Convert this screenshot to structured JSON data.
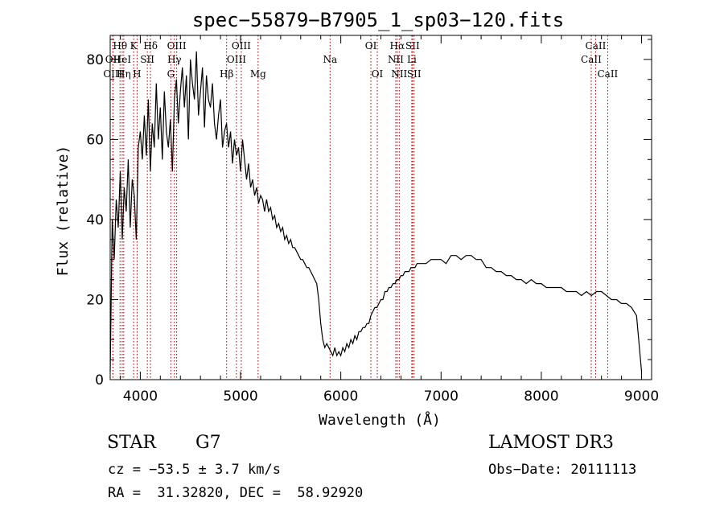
{
  "chart_data": {
    "type": "line",
    "title": "spec−55879−B7905_1_sp03−120.fits",
    "xlabel": "Wavelength (Å)",
    "ylabel": "Flux (relative)",
    "xlim": [
      3700,
      9100
    ],
    "ylim": [
      0,
      86
    ],
    "xticks": [
      4000,
      5000,
      6000,
      7000,
      8000,
      9000
    ],
    "yticks": [
      0,
      20,
      40,
      60,
      80
    ],
    "series": [
      {
        "x": [
          3700,
          3720,
          3740,
          3760,
          3780,
          3800,
          3820,
          3840,
          3860,
          3880,
          3900,
          3920,
          3940,
          3960,
          3980,
          4000,
          4020,
          4040,
          4060,
          4080,
          4100,
          4120,
          4140,
          4160,
          4180,
          4200,
          4220,
          4240,
          4260,
          4280,
          4300,
          4320,
          4340,
          4360,
          4380,
          4400,
          4420,
          4440,
          4460,
          4480,
          4500,
          4520,
          4540,
          4560,
          4580,
          4600,
          4620,
          4640,
          4660,
          4680,
          4700,
          4720,
          4740,
          4760,
          4780,
          4800,
          4820,
          4840,
          4860,
          4880,
          4900,
          4920,
          4940,
          4960,
          4980,
          5000,
          5020,
          5040,
          5060,
          5080,
          5100,
          5120,
          5140,
          5160,
          5180,
          5200,
          5220,
          5240,
          5260,
          5280,
          5300,
          5320,
          5340,
          5360,
          5380,
          5400,
          5420,
          5440,
          5460,
          5480,
          5500,
          5520,
          5540,
          5560,
          5580,
          5600,
          5620,
          5640,
          5660,
          5680,
          5700,
          5720,
          5740,
          5760,
          5780,
          5800,
          5820,
          5840,
          5860,
          5880,
          5900,
          5920,
          5940,
          5960,
          5980,
          6000,
          6020,
          6040,
          6060,
          6080,
          6100,
          6120,
          6140,
          6160,
          6180,
          6200,
          6220,
          6240,
          6260,
          6280,
          6300,
          6320,
          6340,
          6360,
          6380,
          6400,
          6420,
          6440,
          6460,
          6480,
          6500,
          6520,
          6540,
          6560,
          6580,
          6600,
          6620,
          6640,
          6660,
          6680,
          6700,
          6720,
          6740,
          6760,
          6780,
          6800,
          6850,
          6900,
          6950,
          7000,
          7050,
          7100,
          7150,
          7200,
          7250,
          7300,
          7350,
          7400,
          7450,
          7500,
          7550,
          7600,
          7650,
          7700,
          7750,
          7800,
          7850,
          7900,
          7950,
          8000,
          8050,
          8100,
          8150,
          8200,
          8250,
          8300,
          8350,
          8400,
          8450,
          8500,
          8550,
          8600,
          8650,
          8700,
          8750,
          8800,
          8850,
          8900,
          8950,
          9000
        ],
        "y": [
          2,
          40,
          30,
          45,
          38,
          52,
          35,
          48,
          42,
          55,
          38,
          50,
          46,
          35,
          58,
          62,
          55,
          66,
          56,
          70,
          52,
          64,
          58,
          74,
          60,
          68,
          55,
          72,
          62,
          58,
          65,
          52,
          70,
          75,
          64,
          72,
          78,
          68,
          76,
          60,
          80,
          74,
          70,
          82,
          66,
          72,
          78,
          63,
          76,
          70,
          68,
          74,
          64,
          60,
          66,
          70,
          58,
          62,
          64,
          58,
          62,
          54,
          60,
          56,
          58,
          52,
          60,
          55,
          50,
          54,
          48,
          50,
          46,
          48,
          44,
          46,
          45,
          42,
          45,
          42,
          43,
          40,
          41,
          38,
          39,
          37,
          38,
          35,
          36,
          34,
          35,
          33,
          33,
          32,
          31,
          30,
          30,
          29,
          28,
          28,
          27,
          26,
          25,
          24,
          20,
          14,
          10,
          8,
          9,
          8,
          7,
          6,
          8,
          6,
          7,
          6,
          8,
          7,
          9,
          8,
          10,
          9,
          11,
          10,
          12,
          12,
          13,
          13,
          14,
          14,
          16,
          17,
          18,
          18,
          19,
          20,
          20,
          22,
          22,
          23,
          23,
          24,
          24,
          25,
          25,
          26,
          26,
          27,
          27,
          27,
          28,
          28,
          28,
          29,
          29,
          29,
          29,
          30,
          30,
          30,
          29,
          31,
          31,
          30,
          31,
          31,
          30,
          30,
          28,
          28,
          27,
          27,
          26,
          26,
          25,
          25,
          24,
          25,
          24,
          24,
          23,
          23,
          23,
          23,
          22,
          22,
          22,
          21,
          22,
          21,
          22,
          22,
          21,
          20,
          20,
          19,
          19,
          18,
          16,
          2
        ]
      }
    ],
    "spectral_lines": [
      {
        "label": "Hθ",
        "x": 3798,
        "row": 1
      },
      {
        "label": "OII",
        "x": 3727,
        "row": 2
      },
      {
        "label": "OIII",
        "x": 3727,
        "row": 3
      },
      {
        "label": "HeI",
        "x": 3820,
        "row": 2
      },
      {
        "label": "Hη",
        "x": 3835,
        "row": 3
      },
      {
        "label": "K",
        "x": 3934,
        "row": 1
      },
      {
        "label": "H",
        "x": 3968,
        "row": 3
      },
      {
        "label": "SII",
        "x": 4070,
        "row": 2
      },
      {
        "label": "Hδ",
        "x": 4102,
        "row": 1
      },
      {
        "label": "OIII",
        "x": 4363,
        "row": 1
      },
      {
        "label": "Hγ",
        "x": 4340,
        "row": 2
      },
      {
        "label": "G",
        "x": 4305,
        "row": 3
      },
      {
        "label": "Hβ",
        "x": 4861,
        "row": 3
      },
      {
        "label": "OIII",
        "x": 4959,
        "row": 2
      },
      {
        "label": "OIII",
        "x": 5007,
        "row": 1
      },
      {
        "label": "Mg",
        "x": 5175,
        "row": 3
      },
      {
        "label": "Na",
        "x": 5893,
        "row": 2
      },
      {
        "label": "OI",
        "x": 6300,
        "row": 1
      },
      {
        "label": "OI",
        "x": 6364,
        "row": 3
      },
      {
        "label": "Hα",
        "x": 6563,
        "row": 1
      },
      {
        "label": "NII",
        "x": 6548,
        "row": 2
      },
      {
        "label": "NII",
        "x": 6583,
        "row": 3
      },
      {
        "label": "SII",
        "x": 6716,
        "row": 1
      },
      {
        "label": "Li",
        "x": 6708,
        "row": 2
      },
      {
        "label": "SII",
        "x": 6731,
        "row": 3
      },
      {
        "label": "CaII",
        "x": 8542,
        "row": 1
      },
      {
        "label": "CaII",
        "x": 8498,
        "row": 2
      },
      {
        "label": "CaII",
        "x": 8662,
        "row": 3
      }
    ],
    "spectral_line_color": "#8b0000"
  },
  "info": {
    "class": "STAR",
    "subclass": "G7",
    "survey": "LAMOST DR3",
    "cz": "cz = −53.5 ± 3.7 km/s",
    "obs_date": "Obs−Date: 20111113",
    "coords": "RA =  31.32820, DEC =  58.92920"
  }
}
